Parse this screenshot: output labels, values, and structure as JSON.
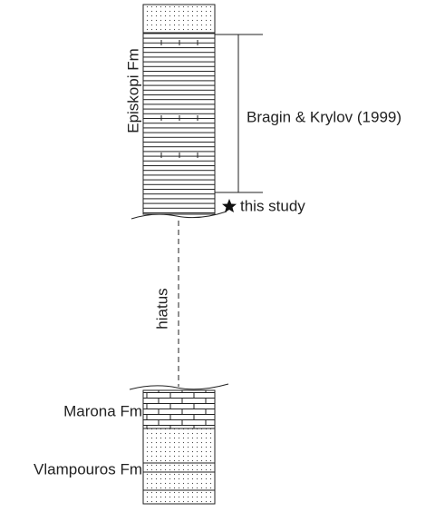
{
  "columns": {
    "upper": {
      "formation": "Episkopi Fm",
      "reference": "Bragin & Krylov (1999)",
      "sample": "this study"
    },
    "gap": "hiatus",
    "lower": {
      "formations": [
        "Marona Fm",
        "Vlampouros Fm"
      ]
    }
  }
}
